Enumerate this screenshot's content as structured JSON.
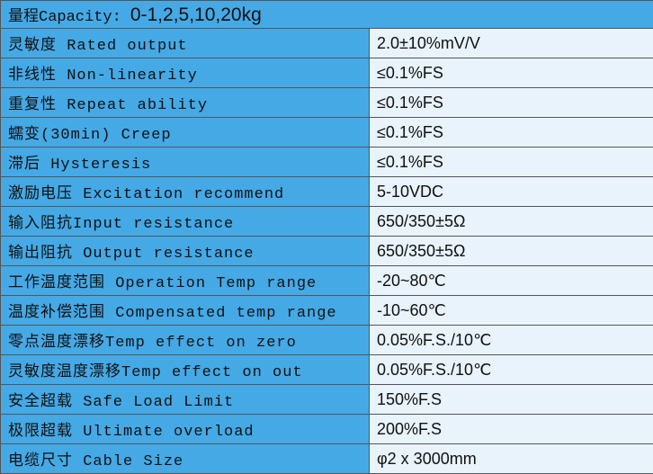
{
  "header": {
    "label": "量程Capacity:",
    "value": "0-1,2,5,10,20kg"
  },
  "table": {
    "rows": [
      [
        "灵敏度 Rated output",
        "2.0±10%mV/V"
      ],
      [
        "非线性 Non-linearity",
        "≤0.1%FS"
      ],
      [
        "重复性 Repeat ability",
        "≤0.1%FS"
      ],
      [
        "蠕变(30min) Creep",
        "≤0.1%FS"
      ],
      [
        "滞后 Hysteresis",
        "≤0.1%FS"
      ],
      [
        "激励电压 Excitation recommend",
        "5-10VDC"
      ],
      [
        "输入阻抗Input resistance",
        "650/350±5Ω"
      ],
      [
        "输出阻抗 Output resistance",
        "650/350±5Ω"
      ],
      [
        "工作温度范围 Operation Temp range",
        "-20~80℃"
      ],
      [
        "温度补偿范围 Compensated temp range",
        "-10~60℃"
      ],
      [
        "零点温度漂移Temp effect on zero",
        "0.05%F.S./10℃"
      ],
      [
        "灵敏度温度漂移Temp effect on out",
        "0.05%F.S./10℃"
      ],
      [
        "安全超载 Safe Load Limit",
        "150%F.S"
      ],
      [
        "极限超载 Ultimate overload",
        "200%F.S"
      ],
      [
        "电缆尺寸 Cable Size",
        "φ2 x 3000mm"
      ]
    ]
  }
}
